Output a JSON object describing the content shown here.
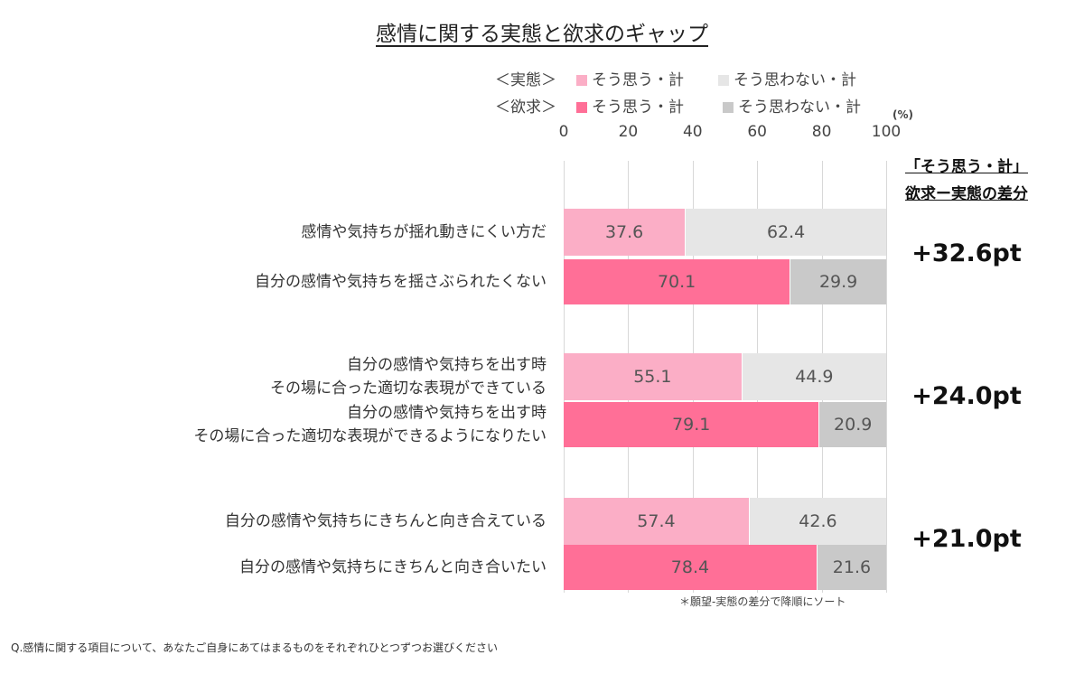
{
  "chart_data": {
    "type": "bar",
    "title": "感情に関する実態と欲求のギャップ",
    "unit": "(%)",
    "xlim": [
      0,
      100
    ],
    "ticks": [
      0,
      20,
      40,
      60,
      80,
      100
    ],
    "legend": [
      {
        "group": "＜実態＞",
        "items": [
          {
            "name": "そう思う・計",
            "color": "#fbaec6"
          },
          {
            "name": "そう思わない・計",
            "color": "#e6e6e6"
          }
        ]
      },
      {
        "group": "＜欲求＞",
        "items": [
          {
            "name": "そう思う・計",
            "color": "#ff6f97"
          },
          {
            "name": "そう思わない・計",
            "color": "#c9c9c9"
          }
        ]
      }
    ],
    "diff_header": [
      "「そう思う・計」",
      "欲求ー実態の差分"
    ],
    "groups": [
      {
        "diff": "+32.6pt",
        "rows": [
          {
            "label": [
              "感情や気持ちが揺れ動きにくい方だ"
            ],
            "type": "実態",
            "yes": 37.6,
            "no": 62.4
          },
          {
            "label": [
              "自分の感情や気持ちを揺さぶられたくない"
            ],
            "type": "欲求",
            "yes": 70.1,
            "no": 29.9
          }
        ]
      },
      {
        "diff": "+24.0pt",
        "rows": [
          {
            "label": [
              "自分の感情や気持ちを出す時",
              "その場に合った適切な表現ができている"
            ],
            "type": "実態",
            "yes": 55.1,
            "no": 44.9
          },
          {
            "label": [
              "自分の感情や気持ちを出す時",
              "その場に合った適切な表現ができるようになりたい"
            ],
            "type": "欲求",
            "yes": 79.1,
            "no": 20.9
          }
        ]
      },
      {
        "diff": "+21.0pt",
        "rows": [
          {
            "label": [
              "自分の感情や気持ちにきちんと向き合えている"
            ],
            "type": "実態",
            "yes": 57.4,
            "no": 42.6
          },
          {
            "label": [
              "自分の感情や気持ちにきちんと向き合いたい"
            ],
            "type": "欲求",
            "yes": 78.4,
            "no": 21.6
          }
        ]
      }
    ],
    "sort_note": "＊願望-実態の差分で降順にソート",
    "footnote": "Q.感情に関する項目について、あなたご自身にあてはまるものをそれぞれひとつずつお選びください"
  }
}
